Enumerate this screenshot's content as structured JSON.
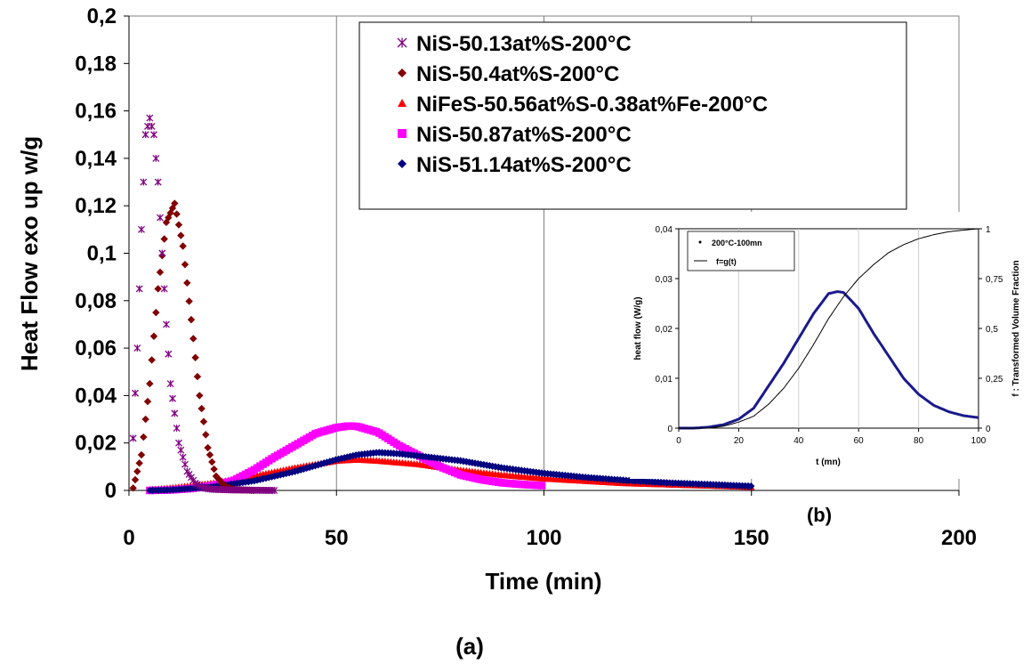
{
  "main_chart": {
    "type": "scatter",
    "xlabel": "Time (min)",
    "ylabel": "Heat Flow exo up w/g",
    "xlim": [
      0,
      200
    ],
    "ylim": [
      0,
      0.2
    ],
    "x_ticks": [
      "0",
      "50",
      "100",
      "150",
      "200"
    ],
    "y_ticks": [
      "0",
      "0,02",
      "0,04",
      "0,06",
      "0,08",
      "0,1",
      "0,12",
      "0,14",
      "0,16",
      "0,18",
      "0,2"
    ],
    "grid": "vertical lines only",
    "legend_position": "top-right",
    "caption": "(a)",
    "series": [
      {
        "name": "NiS-50.13at%S-200°C",
        "color": "#800080",
        "marker": "asterisk",
        "x": [
          1,
          2,
          3,
          4,
          5,
          6,
          7,
          8,
          9,
          10,
          12,
          14,
          16,
          18,
          20,
          25,
          30,
          35
        ],
        "y": [
          0.022,
          0.06,
          0.11,
          0.15,
          0.157,
          0.15,
          0.13,
          0.1,
          0.07,
          0.045,
          0.02,
          0.008,
          0.003,
          0.001,
          0.0005,
          0.0002,
          0.0001,
          0
        ]
      },
      {
        "name": "NiS-50.4at%S-200°C",
        "color": "#800000",
        "marker": "diamond",
        "x": [
          1,
          3,
          5,
          7,
          9,
          11,
          13,
          15,
          17,
          19,
          21,
          23,
          25,
          30
        ],
        "y": [
          0.001,
          0.015,
          0.045,
          0.085,
          0.113,
          0.121,
          0.103,
          0.072,
          0.04,
          0.018,
          0.006,
          0.002,
          0.0005,
          0
        ]
      },
      {
        "name": "NiFeS-50.56at%S-0.38at%Fe-200°C",
        "color": "#ff0000",
        "marker": "triangle",
        "x": [
          5,
          10,
          20,
          30,
          40,
          50,
          55,
          60,
          70,
          80,
          90,
          100,
          110,
          120,
          130,
          140,
          150
        ],
        "y": [
          0.0003,
          0.001,
          0.003,
          0.006,
          0.0095,
          0.0125,
          0.013,
          0.0125,
          0.011,
          0.0085,
          0.0065,
          0.005,
          0.004,
          0.003,
          0.0025,
          0.002,
          0.0015
        ]
      },
      {
        "name": "NiS-50.87at%S-200°C",
        "color": "#ff00ff",
        "marker": "square",
        "x": [
          5,
          10,
          15,
          20,
          25,
          30,
          35,
          40,
          45,
          50,
          53,
          55,
          60,
          65,
          70,
          75,
          80,
          85,
          90,
          95,
          100
        ],
        "y": [
          0,
          0.0002,
          0.0008,
          0.002,
          0.004,
          0.0085,
          0.014,
          0.019,
          0.024,
          0.0265,
          0.0272,
          0.027,
          0.0245,
          0.019,
          0.0145,
          0.01,
          0.0065,
          0.0045,
          0.0032,
          0.0025,
          0.002
        ]
      },
      {
        "name": "NiS-51.14at%S-200°C",
        "color": "#000080",
        "marker": "diamond",
        "x": [
          5,
          10,
          20,
          30,
          40,
          50,
          55,
          60,
          65,
          70,
          80,
          90,
          100,
          110,
          120,
          130,
          140,
          150
        ],
        "y": [
          0,
          0.0002,
          0.0015,
          0.004,
          0.008,
          0.013,
          0.015,
          0.016,
          0.0155,
          0.0145,
          0.0125,
          0.0095,
          0.0072,
          0.0055,
          0.0042,
          0.0032,
          0.0025,
          0.0018
        ]
      }
    ]
  },
  "inset_chart": {
    "caption": "(b)",
    "xlabel": "t (mn)",
    "ylabel_left": "heat flow (W/g)",
    "ylabel_right": "f : Transformed Volume Fraction",
    "xlim": [
      0,
      100
    ],
    "ylim_left": [
      0,
      0.04
    ],
    "ylim_right": [
      0,
      1
    ],
    "x_ticks": [
      "0",
      "20",
      "40",
      "60",
      "80",
      "100"
    ],
    "y_ticks_left": [
      "0",
      "0,01",
      "0,02",
      "0,03",
      "0,04"
    ],
    "y_ticks_right": [
      "0",
      "0,25",
      "0,5",
      "0,75",
      "1"
    ],
    "legend": [
      "200°C-100mn",
      "f=g(t)"
    ],
    "heat_flow": {
      "color": "#1a1a8c",
      "x": [
        0,
        5,
        10,
        15,
        20,
        25,
        30,
        35,
        40,
        45,
        50,
        53,
        55,
        60,
        65,
        70,
        75,
        80,
        85,
        90,
        95,
        100
      ],
      "y": [
        0,
        0,
        0.0002,
        0.0007,
        0.0018,
        0.004,
        0.0085,
        0.013,
        0.018,
        0.023,
        0.027,
        0.0274,
        0.0272,
        0.024,
        0.019,
        0.0145,
        0.01,
        0.0068,
        0.0046,
        0.0033,
        0.0025,
        0.0021
      ]
    },
    "fraction": {
      "color": "#000000",
      "x": [
        0,
        10,
        15,
        20,
        25,
        30,
        35,
        40,
        45,
        50,
        55,
        60,
        65,
        70,
        75,
        80,
        85,
        90,
        95,
        100
      ],
      "y": [
        0,
        0,
        0.01,
        0.03,
        0.06,
        0.12,
        0.2,
        0.3,
        0.42,
        0.55,
        0.66,
        0.75,
        0.82,
        0.88,
        0.92,
        0.95,
        0.97,
        0.985,
        0.993,
        1
      ]
    }
  }
}
